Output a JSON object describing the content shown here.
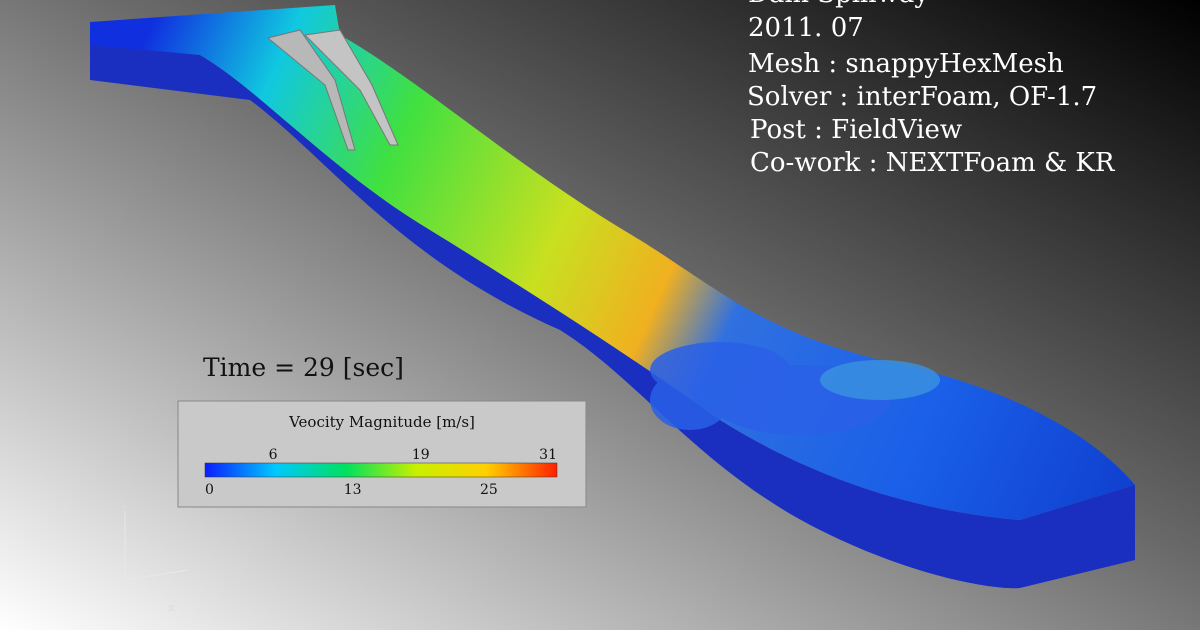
{
  "header": {
    "title": "Dam Spillway",
    "date": "2011. 07"
  },
  "info": [
    "Mesh : snappyHexMesh",
    "Solver : interFoam, OF-1.7",
    "Post : FieldView",
    "Co-work : NEXTFoam & KR"
  ],
  "time_label": "Time = 29 [sec]",
  "colorbar": {
    "title": "Veocity Magnitude [m/s]",
    "range": [
      0,
      31
    ],
    "ticks": [
      0,
      6,
      13,
      19,
      25,
      31
    ],
    "colors": [
      "#0a1eff",
      "#00c8ff",
      "#00e060",
      "#c8f000",
      "#ffd000",
      "#ff2000"
    ]
  },
  "axes_triad": [
    "z",
    "x"
  ]
}
